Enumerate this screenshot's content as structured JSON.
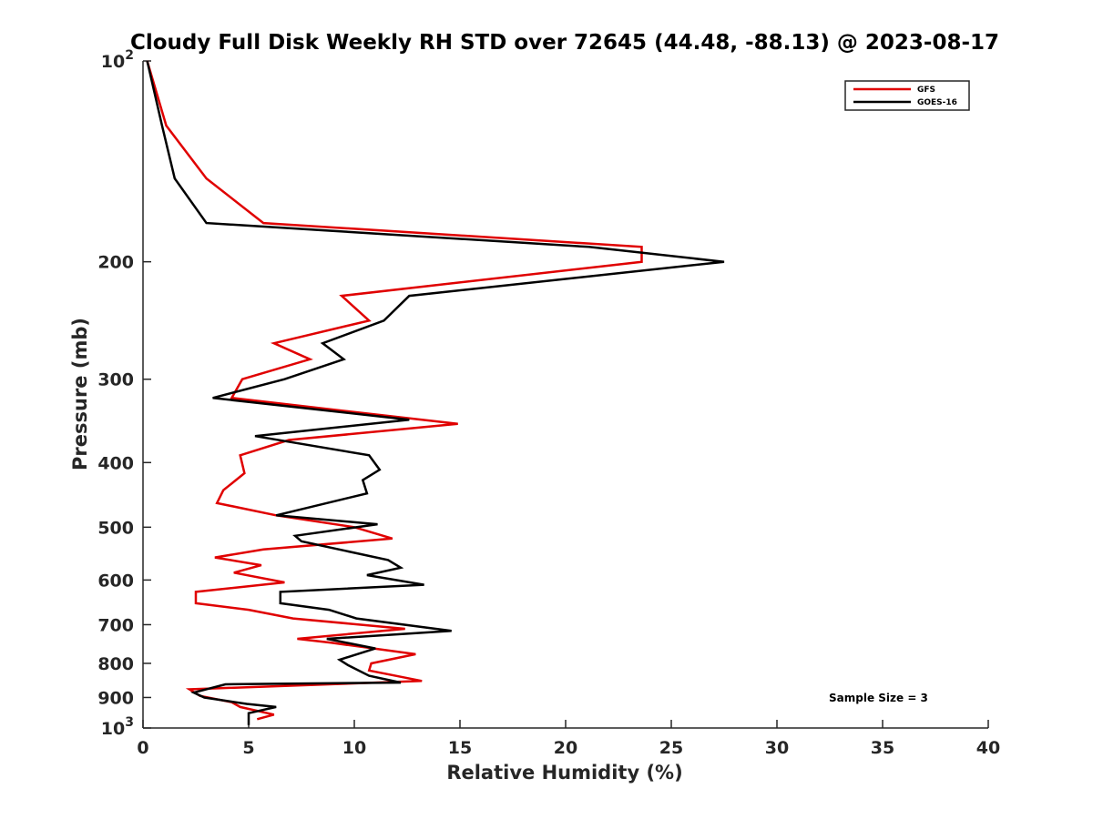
{
  "chart_data": {
    "type": "line",
    "title": "Cloudy Full Disk Weekly RH STD over 72645 (44.48, -88.13) @ 2023-08-17",
    "xlabel": "Relative Humidity (%)",
    "ylabel": "Pressure (mb)",
    "xlim": [
      0,
      40
    ],
    "ylim": [
      100,
      1000
    ],
    "y_scale": "log",
    "y_reversed": true,
    "x_ticks": [
      "0",
      "5",
      "10",
      "15",
      "20",
      "25",
      "30",
      "35",
      "40"
    ],
    "y_ticks": [
      {
        "value": 100,
        "label": "10",
        "sup": "2"
      },
      {
        "value": 200,
        "label": "200"
      },
      {
        "value": 300,
        "label": "300"
      },
      {
        "value": 400,
        "label": "400"
      },
      {
        "value": 500,
        "label": "500"
      },
      {
        "value": 600,
        "label": "600"
      },
      {
        "value": 700,
        "label": "700"
      },
      {
        "value": 800,
        "label": "800"
      },
      {
        "value": 900,
        "label": "900"
      },
      {
        "value": 1000,
        "label": "10",
        "sup": "3"
      }
    ],
    "grid": false,
    "legend_position": "top-right",
    "annotation": "Sample Size = 3",
    "series": [
      {
        "name": "GFS",
        "color": "#e00000",
        "points": [
          [
            0.2,
            100
          ],
          [
            1.1,
            125
          ],
          [
            3.0,
            150
          ],
          [
            5.7,
            175
          ],
          [
            23.6,
            190
          ],
          [
            23.6,
            200
          ],
          [
            9.4,
            225
          ],
          [
            10.7,
            245
          ],
          [
            6.2,
            265
          ],
          [
            7.9,
            280
          ],
          [
            4.7,
            300
          ],
          [
            4.2,
            320
          ],
          [
            14.9,
            350
          ],
          [
            6.9,
            370
          ],
          [
            4.6,
            390
          ],
          [
            4.8,
            415
          ],
          [
            3.8,
            440
          ],
          [
            3.5,
            460
          ],
          [
            6.3,
            480
          ],
          [
            10.0,
            500
          ],
          [
            11.8,
            520
          ],
          [
            5.7,
            540
          ],
          [
            3.4,
            555
          ],
          [
            5.6,
            570
          ],
          [
            4.3,
            585
          ],
          [
            6.7,
            605
          ],
          [
            2.5,
            625
          ],
          [
            2.5,
            650
          ],
          [
            5.0,
            665
          ],
          [
            7.1,
            685
          ],
          [
            12.4,
            710
          ],
          [
            7.3,
            735
          ],
          [
            8.9,
            745
          ],
          [
            12.9,
            775
          ],
          [
            10.8,
            800
          ],
          [
            10.7,
            820
          ],
          [
            13.2,
            850
          ],
          [
            2.2,
            875
          ],
          [
            2.7,
            895
          ],
          [
            4.2,
            915
          ],
          [
            4.6,
            930
          ],
          [
            6.2,
            955
          ],
          [
            5.4,
            970
          ]
        ]
      },
      {
        "name": "GOES-16",
        "color": "#000000",
        "points": [
          [
            0.2,
            100
          ],
          [
            0.9,
            125
          ],
          [
            1.5,
            150
          ],
          [
            3.0,
            175
          ],
          [
            21.1,
            190
          ],
          [
            27.5,
            200
          ],
          [
            12.6,
            225
          ],
          [
            11.4,
            245
          ],
          [
            8.5,
            265
          ],
          [
            9.5,
            280
          ],
          [
            6.7,
            300
          ],
          [
            3.3,
            320
          ],
          [
            12.6,
            345
          ],
          [
            5.3,
            365
          ],
          [
            10.7,
            390
          ],
          [
            11.2,
            410
          ],
          [
            10.4,
            425
          ],
          [
            10.6,
            445
          ],
          [
            6.3,
            480
          ],
          [
            11.1,
            495
          ],
          [
            7.2,
            515
          ],
          [
            7.5,
            525
          ],
          [
            11.6,
            560
          ],
          [
            12.2,
            575
          ],
          [
            10.6,
            590
          ],
          [
            13.3,
            610
          ],
          [
            6.5,
            625
          ],
          [
            6.5,
            650
          ],
          [
            8.8,
            665
          ],
          [
            10.1,
            685
          ],
          [
            14.6,
            715
          ],
          [
            8.7,
            735
          ],
          [
            11.0,
            760
          ],
          [
            9.3,
            790
          ],
          [
            9.7,
            805
          ],
          [
            10.7,
            835
          ],
          [
            12.2,
            855
          ],
          [
            3.9,
            860
          ],
          [
            2.4,
            885
          ],
          [
            2.9,
            900
          ],
          [
            4.9,
            920
          ],
          [
            6.3,
            930
          ],
          [
            5.0,
            950
          ],
          [
            5.0,
            990
          ]
        ]
      }
    ]
  }
}
